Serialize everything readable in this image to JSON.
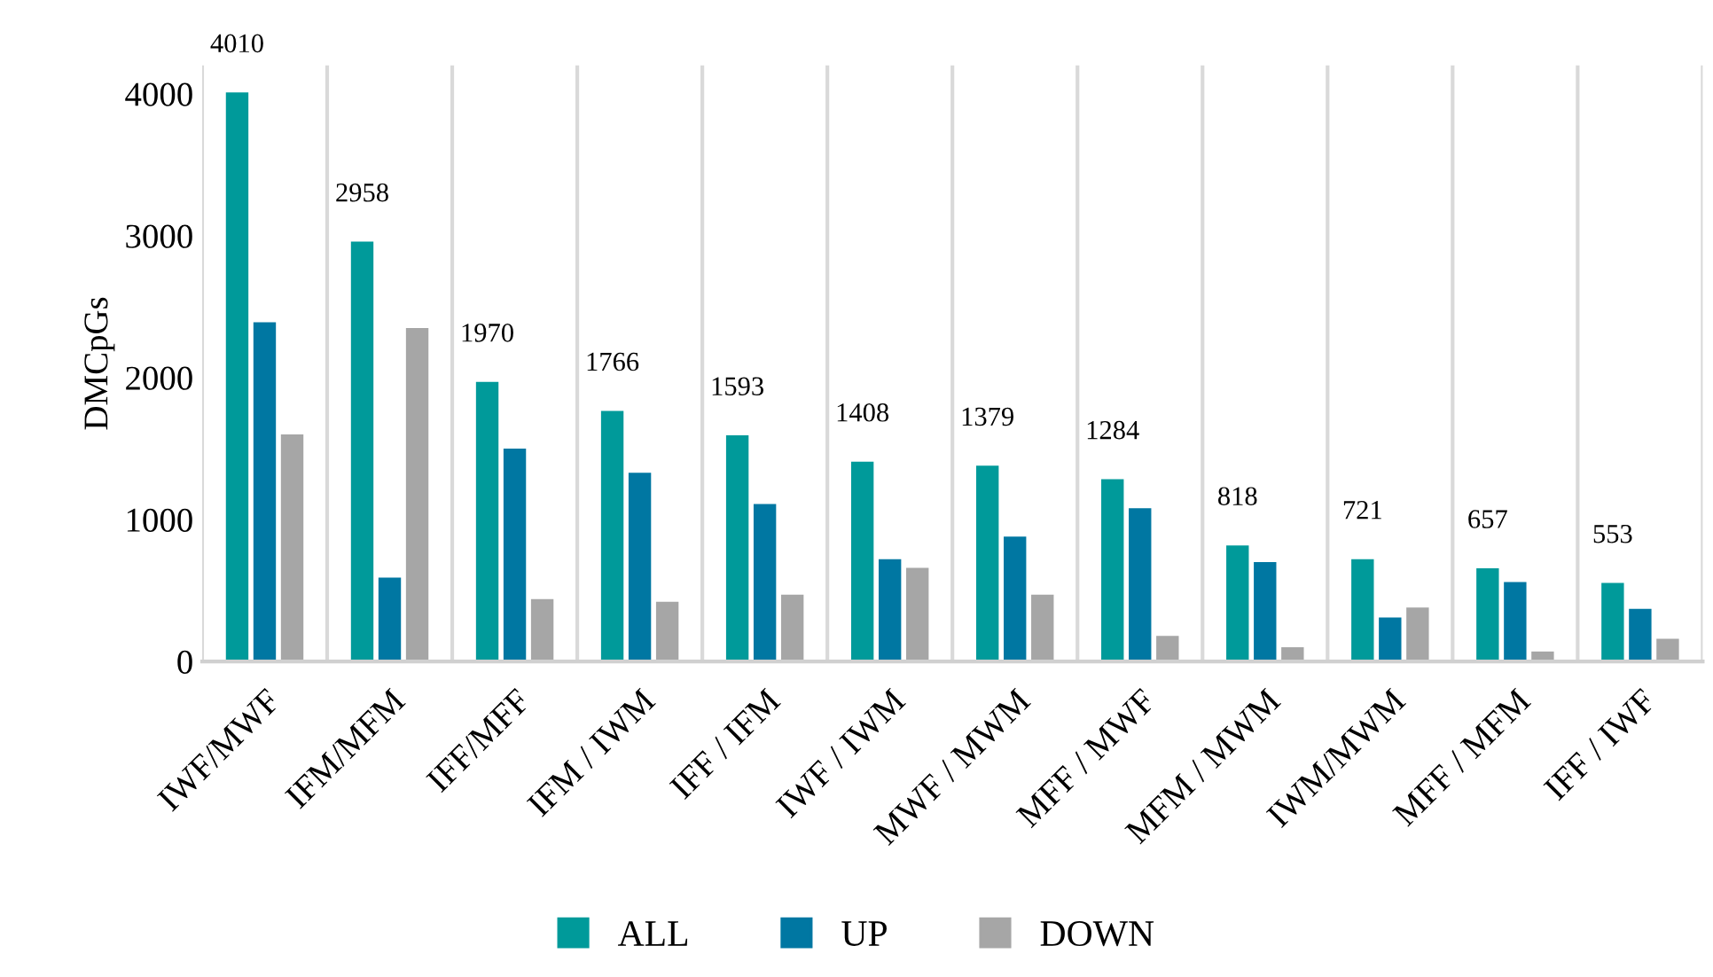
{
  "chart_data": {
    "type": "bar",
    "ylabel": "DMCpGs",
    "categories": [
      "IWF/MWF",
      "IFM/MFM",
      "IFF/MFF",
      "IFM / IWM",
      "IFF / IFM",
      "IWF / IWM",
      "MWF / MWM",
      "MFF / MWF",
      "MFM / MWM",
      "IWM/MWM",
      "MFF / MFM",
      "IFF / IWF"
    ],
    "series": [
      {
        "name": "ALL",
        "color": "#009a9a",
        "values": [
          4010,
          2958,
          1970,
          1766,
          1593,
          1408,
          1379,
          1284,
          818,
          721,
          657,
          553
        ],
        "value_labels": [
          "4010",
          "2958",
          "1970",
          "1766",
          "1593",
          "1408",
          "1379",
          "1284",
          "818",
          "721",
          "657",
          "553"
        ]
      },
      {
        "name": "UP",
        "color": "#0077a2",
        "values": [
          2390,
          590,
          1500,
          1330,
          1110,
          720,
          880,
          1080,
          700,
          310,
          560,
          370
        ]
      },
      {
        "name": "DOWN",
        "color": "#a6a6a6",
        "values": [
          1600,
          2350,
          440,
          420,
          470,
          660,
          470,
          180,
          100,
          380,
          70,
          160
        ]
      }
    ],
    "ylim": [
      0,
      4200
    ],
    "yticks": [
      0,
      1000,
      2000,
      3000,
      4000
    ],
    "grid": "x",
    "legend": "bottom"
  }
}
